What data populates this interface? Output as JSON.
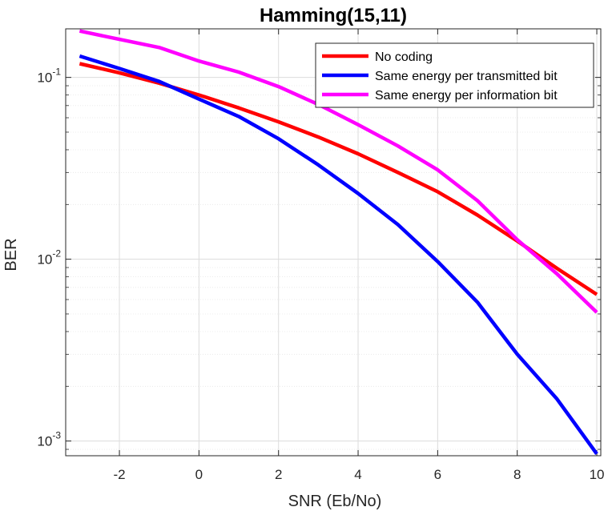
{
  "chart_data": {
    "type": "line",
    "title": "Hamming(15,11)",
    "xlabel": "SNR (Eb/No)",
    "ylabel": "BER",
    "yscale": "log",
    "xlim": [
      -3.35,
      10.1
    ],
    "ylim": [
      0.00083,
      0.185
    ],
    "x_ticks": [
      -2,
      0,
      2,
      4,
      6,
      8,
      10
    ],
    "y_ticks": [
      {
        "value": 0.1,
        "base": "10",
        "exp": "-1"
      },
      {
        "value": 0.01,
        "base": "10",
        "exp": "-2"
      },
      {
        "value": 0.001,
        "base": "10",
        "exp": "-3"
      }
    ],
    "grid": true,
    "legend_position": "top-right",
    "x": [
      -3,
      -2,
      -1,
      0,
      1,
      2,
      3,
      4,
      5,
      6,
      7,
      8,
      9,
      10
    ],
    "series": [
      {
        "name": "No coding",
        "color": "#ff0000",
        "values": [
          0.119,
          0.106,
          0.093,
          0.08,
          0.068,
          0.057,
          0.047,
          0.038,
          0.03,
          0.0235,
          0.0175,
          0.0126,
          0.0089,
          0.0064
        ]
      },
      {
        "name": "Same energy per transmitted bit",
        "color": "#0000ff",
        "values": [
          0.131,
          0.112,
          0.095,
          0.076,
          0.061,
          0.046,
          0.033,
          0.023,
          0.0155,
          0.0097,
          0.0058,
          0.003,
          0.0017,
          0.00085
        ]
      },
      {
        "name": "Same energy per information bit",
        "color": "#ff00ff",
        "values": [
          0.18,
          0.162,
          0.146,
          0.123,
          0.107,
          0.089,
          0.071,
          0.055,
          0.042,
          0.031,
          0.021,
          0.0128,
          0.0083,
          0.0051
        ]
      }
    ]
  }
}
